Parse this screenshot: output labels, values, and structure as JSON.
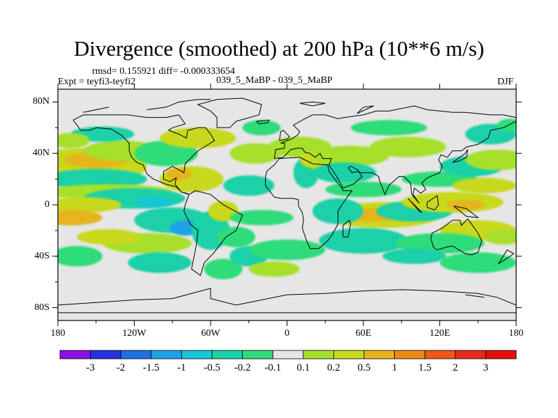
{
  "title": "Divergence (smoothed) at 200 hPa (10**6 m/s)",
  "rmsd_line": "rmsd= 0.155921 diff= -0.000333654",
  "expt_line": "Expt = teyfi3-teyfi2",
  "case_line": "039_5_MaBP - 039_5_MaBP",
  "season": "DJF",
  "map": {
    "projection": "cylindrical equidistant",
    "lon_range": [
      -180,
      180
    ],
    "lat_range": [
      -90,
      90
    ],
    "lat_labels": [
      "80N",
      "40N",
      "0",
      "40S",
      "80S"
    ],
    "lat_values": [
      80,
      40,
      0,
      -40,
      -80
    ],
    "lon_labels": [
      "180",
      "120W",
      "60W",
      "0",
      "60E",
      "120E",
      "180"
    ],
    "lon_values": [
      -180,
      -120,
      -60,
      0,
      60,
      120,
      180
    ],
    "background_color": "#e6e6e6"
  },
  "colorbar": {
    "labels": [
      "-3",
      "-2",
      "-1.5",
      "-1",
      "-0.5",
      "-0.2",
      "-0.1",
      "0.1",
      "0.2",
      "0.5",
      "1",
      "1.5",
      "2",
      "3"
    ],
    "colors": [
      "#8a10e6",
      "#2830e0",
      "#1f6fe0",
      "#1aa2e6",
      "#18c6d6",
      "#1cd0a8",
      "#2ddc7a",
      "#e6e6e6",
      "#a6e02a",
      "#c8d81e",
      "#e6b41a",
      "#ee8a14",
      "#f0561a",
      "#e82818",
      "#e40e0e"
    ]
  },
  "features": [
    {
      "lon": -160,
      "lat": 30,
      "w": 50,
      "h": 14,
      "level": 9
    },
    {
      "lon": -150,
      "lat": 35,
      "w": 25,
      "h": 6,
      "level": 10
    },
    {
      "lon": -130,
      "lat": 42,
      "w": 30,
      "h": 8,
      "level": 8
    },
    {
      "lon": -95,
      "lat": 40,
      "w": 25,
      "h": 10,
      "level": 6
    },
    {
      "lon": -70,
      "lat": 52,
      "w": 30,
      "h": 8,
      "level": 9
    },
    {
      "lon": -75,
      "lat": 20,
      "w": 25,
      "h": 10,
      "level": 9
    },
    {
      "lon": -85,
      "lat": 24,
      "w": 10,
      "h": 5,
      "level": 10
    },
    {
      "lon": -150,
      "lat": 20,
      "w": 40,
      "h": 8,
      "level": 5
    },
    {
      "lon": -140,
      "lat": 10,
      "w": 50,
      "h": 6,
      "level": 8
    },
    {
      "lon": -120,
      "lat": 5,
      "w": 40,
      "h": 8,
      "level": 5
    },
    {
      "lon": -105,
      "lat": 2,
      "w": 15,
      "h": 4,
      "level": 4
    },
    {
      "lon": -160,
      "lat": 0,
      "w": 30,
      "h": 6,
      "level": 9
    },
    {
      "lon": -170,
      "lat": -10,
      "w": 25,
      "h": 6,
      "level": 10
    },
    {
      "lon": -90,
      "lat": -12,
      "w": 30,
      "h": 10,
      "level": 5
    },
    {
      "lon": -80,
      "lat": -18,
      "w": 12,
      "h": 6,
      "level": 3
    },
    {
      "lon": -60,
      "lat": -20,
      "w": 15,
      "h": 15,
      "level": 5
    },
    {
      "lon": -50,
      "lat": -5,
      "w": 12,
      "h": 8,
      "level": 9
    },
    {
      "lon": -40,
      "lat": -25,
      "w": 15,
      "h": 8,
      "level": 6
    },
    {
      "lon": -30,
      "lat": 15,
      "w": 20,
      "h": 8,
      "level": 5
    },
    {
      "lon": -20,
      "lat": -10,
      "w": 25,
      "h": 6,
      "level": 6
    },
    {
      "lon": -110,
      "lat": -30,
      "w": 35,
      "h": 8,
      "level": 8
    },
    {
      "lon": -140,
      "lat": -25,
      "w": 25,
      "h": 6,
      "level": 9
    },
    {
      "lon": -100,
      "lat": -45,
      "w": 25,
      "h": 8,
      "level": 5
    },
    {
      "lon": -165,
      "lat": -40,
      "w": 20,
      "h": 8,
      "level": 6
    },
    {
      "lon": -50,
      "lat": -50,
      "w": 15,
      "h": 8,
      "level": 6
    },
    {
      "lon": -30,
      "lat": -40,
      "w": 15,
      "h": 8,
      "level": 5
    },
    {
      "lon": -25,
      "lat": 40,
      "w": 20,
      "h": 8,
      "level": 8
    },
    {
      "lon": -20,
      "lat": 60,
      "w": 15,
      "h": 6,
      "level": 6
    },
    {
      "lon": 10,
      "lat": 45,
      "w": 25,
      "h": 8,
      "level": 8
    },
    {
      "lon": 15,
      "lat": 25,
      "w": 10,
      "h": 12,
      "level": 5
    },
    {
      "lon": 30,
      "lat": 35,
      "w": 20,
      "h": 8,
      "level": 9
    },
    {
      "lon": 50,
      "lat": 38,
      "w": 30,
      "h": 8,
      "level": 8
    },
    {
      "lon": 45,
      "lat": 25,
      "w": 25,
      "h": 8,
      "level": 5
    },
    {
      "lon": 60,
      "lat": 12,
      "w": 30,
      "h": 6,
      "level": 6
    },
    {
      "lon": 75,
      "lat": -8,
      "w": 45,
      "h": 10,
      "level": 9
    },
    {
      "lon": 65,
      "lat": -8,
      "w": 25,
      "h": 5,
      "level": 10
    },
    {
      "lon": 40,
      "lat": -5,
      "w": 20,
      "h": 10,
      "level": 5
    },
    {
      "lon": 60,
      "lat": -28,
      "w": 35,
      "h": 10,
      "level": 5
    },
    {
      "lon": 100,
      "lat": -5,
      "w": 30,
      "h": 8,
      "level": 5
    },
    {
      "lon": 130,
      "lat": 2,
      "w": 40,
      "h": 8,
      "level": 9
    },
    {
      "lon": 140,
      "lat": 0,
      "w": 15,
      "h": 4,
      "level": 10
    },
    {
      "lon": 120,
      "lat": 20,
      "w": 30,
      "h": 6,
      "level": 6
    },
    {
      "lon": 145,
      "lat": 30,
      "w": 25,
      "h": 8,
      "level": 5
    },
    {
      "lon": 165,
      "lat": 35,
      "w": 25,
      "h": 8,
      "level": 8
    },
    {
      "lon": 155,
      "lat": 15,
      "w": 25,
      "h": 6,
      "level": 9
    },
    {
      "lon": 150,
      "lat": -20,
      "w": 30,
      "h": 8,
      "level": 9
    },
    {
      "lon": 120,
      "lat": -30,
      "w": 35,
      "h": 8,
      "level": 6
    },
    {
      "lon": 100,
      "lat": -40,
      "w": 25,
      "h": 6,
      "level": 5
    },
    {
      "lon": 150,
      "lat": -45,
      "w": 30,
      "h": 8,
      "level": 6
    },
    {
      "lon": 170,
      "lat": -25,
      "w": 15,
      "h": 6,
      "level": 8
    },
    {
      "lon": 160,
      "lat": 55,
      "w": 20,
      "h": 8,
      "level": 5
    },
    {
      "lon": 175,
      "lat": 62,
      "w": 10,
      "h": 5,
      "level": 6
    },
    {
      "lon": 80,
      "lat": 60,
      "w": 30,
      "h": 6,
      "level": 6
    },
    {
      "lon": 95,
      "lat": 45,
      "w": 30,
      "h": 8,
      "level": 8
    },
    {
      "lon": 0,
      "lat": -35,
      "w": 30,
      "h": 8,
      "level": 6
    },
    {
      "lon": -10,
      "lat": -50,
      "w": 20,
      "h": 6,
      "level": 8
    },
    {
      "lon": -145,
      "lat": 55,
      "w": 25,
      "h": 6,
      "level": 5
    },
    {
      "lon": -170,
      "lat": 50,
      "w": 15,
      "h": 6,
      "level": 8
    }
  ],
  "coastlines": [
    [
      [
        -168,
        66
      ],
      [
        -160,
        70
      ],
      [
        -140,
        70
      ],
      [
        -125,
        70
      ],
      [
        -110,
        68
      ],
      [
        -95,
        68
      ],
      [
        -85,
        70
      ],
      [
        -80,
        63
      ],
      [
        -90,
        60
      ],
      [
        -93,
        58
      ],
      [
        -85,
        55
      ],
      [
        -79,
        52
      ],
      [
        -78,
        58
      ],
      [
        -70,
        60
      ],
      [
        -64,
        60
      ],
      [
        -60,
        55
      ],
      [
        -57,
        50
      ],
      [
        -65,
        45
      ],
      [
        -70,
        42
      ],
      [
        -75,
        37
      ],
      [
        -80,
        32
      ],
      [
        -81,
        25
      ],
      [
        -90,
        30
      ],
      [
        -97,
        26
      ],
      [
        -97,
        20
      ],
      [
        -92,
        18
      ],
      [
        -87,
        21
      ],
      [
        -88,
        16
      ],
      [
        -83,
        10
      ],
      [
        -79,
        9
      ],
      [
        -77,
        8
      ],
      [
        -80,
        0
      ],
      [
        -81,
        -5
      ],
      [
        -76,
        -15
      ],
      [
        -70,
        -20
      ],
      [
        -71,
        -30
      ],
      [
        -73,
        -40
      ],
      [
        -75,
        -50
      ],
      [
        -68,
        -55
      ],
      [
        -65,
        -45
      ],
      [
        -58,
        -38
      ],
      [
        -48,
        -25
      ],
      [
        -40,
        -20
      ],
      [
        -35,
        -8
      ],
      [
        -50,
        0
      ],
      [
        -60,
        8
      ],
      [
        -72,
        11
      ],
      [
        -77,
        8
      ],
      [
        -83,
        10
      ],
      [
        -87,
        14
      ],
      [
        -95,
        16
      ],
      [
        -105,
        20
      ],
      [
        -110,
        24
      ],
      [
        -113,
        31
      ],
      [
        -118,
        33
      ],
      [
        -122,
        37
      ],
      [
        -124,
        42
      ],
      [
        -124,
        48
      ],
      [
        -130,
        54
      ],
      [
        -138,
        59
      ],
      [
        -150,
        60
      ],
      [
        -155,
        58
      ],
      [
        -162,
        58
      ],
      [
        -165,
        62
      ],
      [
        -168,
        66
      ]
    ],
    [
      [
        -55,
        60
      ],
      [
        -45,
        60
      ],
      [
        -40,
        65
      ],
      [
        -22,
        70
      ],
      [
        -20,
        78
      ],
      [
        -35,
        83
      ],
      [
        -55,
        82
      ],
      [
        -70,
        78
      ],
      [
        -60,
        73
      ],
      [
        -55,
        68
      ],
      [
        -55,
        60
      ]
    ],
    [
      [
        -10,
        36
      ],
      [
        -9,
        43
      ],
      [
        -2,
        44
      ],
      [
        -2,
        48
      ],
      [
        -5,
        48
      ],
      [
        3,
        51
      ],
      [
        8,
        54
      ],
      [
        10,
        57
      ],
      [
        5,
        62
      ],
      [
        14,
        67
      ],
      [
        20,
        70
      ],
      [
        30,
        70
      ],
      [
        40,
        67
      ],
      [
        45,
        68
      ],
      [
        60,
        70
      ],
      [
        70,
        73
      ],
      [
        80,
        73
      ],
      [
        100,
        77
      ],
      [
        110,
        74
      ],
      [
        130,
        72
      ],
      [
        140,
        72
      ],
      [
        160,
        70
      ],
      [
        170,
        70
      ],
      [
        180,
        68
      ]
    ],
    [
      [
        180,
        65
      ],
      [
        170,
        60
      ],
      [
        160,
        58
      ],
      [
        158,
        52
      ],
      [
        150,
        47
      ],
      [
        141,
        45
      ],
      [
        137,
        42
      ],
      [
        130,
        42
      ],
      [
        126,
        37
      ],
      [
        121,
        39
      ],
      [
        119,
        35
      ],
      [
        122,
        30
      ],
      [
        120,
        25
      ],
      [
        110,
        21
      ],
      [
        106,
        17
      ],
      [
        109,
        12
      ],
      [
        105,
        9
      ],
      [
        100,
        13
      ],
      [
        99,
        8
      ],
      [
        104,
        1
      ],
      [
        98,
        8
      ],
      [
        97,
        17
      ],
      [
        92,
        22
      ],
      [
        88,
        22
      ],
      [
        80,
        15
      ],
      [
        77,
        8
      ],
      [
        73,
        18
      ],
      [
        72,
        22
      ],
      [
        67,
        25
      ],
      [
        57,
        25
      ],
      [
        56,
        27
      ],
      [
        50,
        30
      ],
      [
        48,
        29
      ],
      [
        51,
        25
      ],
      [
        56,
        26
      ],
      [
        59,
        22
      ],
      [
        52,
        16
      ],
      [
        44,
        13
      ],
      [
        39,
        22
      ],
      [
        35,
        28
      ],
      [
        33,
        31
      ],
      [
        35,
        36
      ],
      [
        28,
        36
      ],
      [
        26,
        40
      ],
      [
        22,
        37
      ],
      [
        18,
        40
      ],
      [
        14,
        41
      ],
      [
        12,
        44
      ],
      [
        8,
        44
      ],
      [
        3,
        43
      ],
      [
        -3,
        37
      ],
      [
        -10,
        36
      ]
    ],
    [
      [
        -17,
        21
      ],
      [
        -17,
        15
      ],
      [
        -10,
        6
      ],
      [
        -5,
        5
      ],
      [
        5,
        5
      ],
      [
        9,
        4
      ],
      [
        9,
        -1
      ],
      [
        12,
        -6
      ],
      [
        13,
        -12
      ],
      [
        12,
        -18
      ],
      [
        15,
        -27
      ],
      [
        18,
        -34
      ],
      [
        25,
        -34
      ],
      [
        32,
        -28
      ],
      [
        35,
        -24
      ],
      [
        40,
        -15
      ],
      [
        40,
        -5
      ],
      [
        43,
        0
      ],
      [
        51,
        11
      ],
      [
        44,
        11
      ],
      [
        43,
        13
      ],
      [
        39,
        18
      ],
      [
        33,
        26
      ],
      [
        32,
        31
      ],
      [
        20,
        32
      ],
      [
        10,
        37
      ],
      [
        -6,
        36
      ],
      [
        -10,
        31
      ],
      [
        -16,
        26
      ],
      [
        -17,
        21
      ]
    ],
    [
      [
        114,
        -22
      ],
      [
        122,
        -18
      ],
      [
        130,
        -12
      ],
      [
        136,
        -12
      ],
      [
        137,
        -16
      ],
      [
        142,
        -11
      ],
      [
        145,
        -15
      ],
      [
        150,
        -22
      ],
      [
        153,
        -28
      ],
      [
        150,
        -37
      ],
      [
        145,
        -39
      ],
      [
        140,
        -38
      ],
      [
        135,
        -35
      ],
      [
        130,
        -32
      ],
      [
        125,
        -33
      ],
      [
        118,
        -35
      ],
      [
        115,
        -33
      ],
      [
        113,
        -26
      ],
      [
        114,
        -22
      ]
    ],
    [
      [
        44,
        -25
      ],
      [
        48,
        -25
      ],
      [
        50,
        -15
      ],
      [
        49,
        -12
      ],
      [
        44,
        -16
      ],
      [
        44,
        -25
      ]
    ],
    [
      [
        95,
        5
      ],
      [
        106,
        -6
      ],
      [
        104,
        -5
      ],
      [
        95,
        5
      ]
    ],
    [
      [
        110,
        2
      ],
      [
        118,
        7
      ],
      [
        119,
        0
      ],
      [
        116,
        -4
      ],
      [
        110,
        -2
      ],
      [
        110,
        2
      ]
    ],
    [
      [
        131,
        -1
      ],
      [
        141,
        -3
      ],
      [
        150,
        -10
      ],
      [
        141,
        -9
      ],
      [
        131,
        -1
      ]
    ],
    [
      [
        166,
        -46
      ],
      [
        174,
        -41
      ],
      [
        178,
        -38
      ],
      [
        173,
        -35
      ],
      [
        166,
        -46
      ]
    ],
    [
      [
        -6,
        50
      ],
      [
        0,
        51
      ],
      [
        2,
        53
      ],
      [
        -3,
        58
      ],
      [
        -5,
        57
      ],
      [
        -6,
        50
      ]
    ],
    [
      [
        -24,
        65
      ],
      [
        -14,
        66
      ],
      [
        -15,
        64
      ],
      [
        -22,
        63
      ],
      [
        -24,
        65
      ]
    ],
    [
      [
        130,
        33
      ],
      [
        135,
        34
      ],
      [
        141,
        37
      ],
      [
        142,
        43
      ],
      [
        140,
        40
      ],
      [
        130,
        33
      ]
    ],
    [
      [
        -180,
        -78
      ],
      [
        -150,
        -76
      ],
      [
        -120,
        -74
      ],
      [
        -90,
        -73
      ],
      [
        -60,
        -65
      ],
      [
        -60,
        -73
      ],
      [
        -40,
        -78
      ],
      [
        -20,
        -74
      ],
      [
        0,
        -70
      ],
      [
        30,
        -69
      ],
      [
        60,
        -67
      ],
      [
        90,
        -66
      ],
      [
        120,
        -67
      ],
      [
        150,
        -69
      ],
      [
        165,
        -72
      ],
      [
        180,
        -78
      ]
    ],
    [
      [
        -180,
        -84
      ],
      [
        180,
        -84
      ]
    ],
    [
      [
        -160,
        72
      ],
      [
        -150,
        74
      ],
      [
        -140,
        76
      ]
    ],
    [
      [
        -110,
        74
      ],
      [
        -95,
        76
      ],
      [
        -85,
        80
      ],
      [
        -70,
        82
      ],
      [
        -60,
        82
      ]
    ],
    [
      [
        10,
        79
      ],
      [
        20,
        80
      ],
      [
        30,
        79
      ],
      [
        20,
        77
      ],
      [
        10,
        79
      ]
    ],
    [
      [
        55,
        71
      ],
      [
        60,
        76
      ],
      [
        68,
        77
      ],
      [
        55,
        71
      ]
    ],
    [
      [
        140,
        -70
      ],
      [
        155,
        -72
      ]
    ]
  ]
}
